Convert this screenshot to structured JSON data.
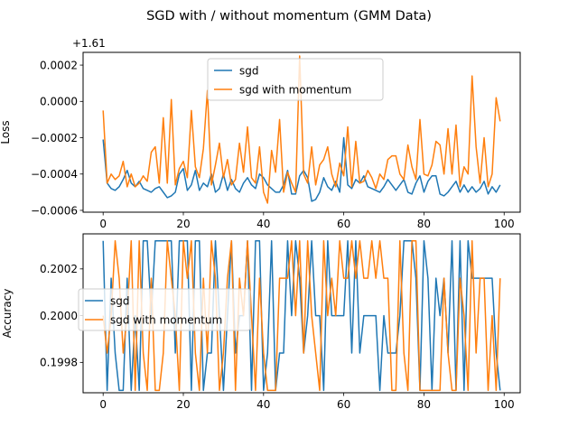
{
  "figure": {
    "suptitle": "SGD with / without momentum (GMM Data)"
  },
  "colors": {
    "sgd": "#1f77b4",
    "momentum": "#ff7f0e"
  },
  "chart_data": [
    {
      "type": "line",
      "title": "",
      "xlabel": "",
      "ylabel": "Loss",
      "y_offset_text": "+1.61",
      "xlim": [
        -5,
        104
      ],
      "ylim": [
        -0.00061,
        0.00027
      ],
      "x_ticks": [
        0,
        20,
        40,
        60,
        80,
        100
      ],
      "y_ticks": [
        -0.0006,
        -0.0004,
        -0.0002,
        0.0,
        0.0002
      ],
      "y_tick_labels": [
        "−0.0006",
        "−0.0004",
        "−0.0002",
        "0.0000",
        "0.0002"
      ],
      "legend": "upper center",
      "series": [
        {
          "name": "sgd",
          "color": "#1f77b4",
          "x": [
            0,
            1,
            2,
            3,
            4,
            5,
            6,
            7,
            8,
            9,
            10,
            11,
            12,
            13,
            14,
            15,
            16,
            17,
            18,
            19,
            20,
            21,
            22,
            23,
            24,
            25,
            26,
            27,
            28,
            29,
            30,
            31,
            32,
            33,
            34,
            35,
            36,
            37,
            38,
            39,
            40,
            41,
            42,
            43,
            44,
            45,
            46,
            47,
            48,
            49,
            50,
            51,
            52,
            53,
            54,
            55,
            56,
            57,
            58,
            59,
            60,
            61,
            62,
            63,
            64,
            65,
            66,
            67,
            68,
            69,
            70,
            71,
            72,
            73,
            74,
            75,
            76,
            77,
            78,
            79,
            80,
            81,
            82,
            83,
            84,
            85,
            86,
            87,
            88,
            89,
            90,
            91,
            92,
            93,
            94,
            95,
            96,
            97,
            98,
            99
          ],
          "values": [
            -0.00021,
            -0.00045,
            -0.00048,
            -0.00049,
            -0.00047,
            -0.00043,
            -0.00038,
            -0.00045,
            -0.00047,
            -0.00044,
            -0.00048,
            -0.00049,
            -0.0005,
            -0.00048,
            -0.00047,
            -0.0005,
            -0.00053,
            -0.00052,
            -0.0005,
            -0.0004,
            -0.00037,
            -0.00049,
            -0.00046,
            -0.00038,
            -0.00049,
            -0.00045,
            -0.00047,
            -0.0004,
            -0.0005,
            -0.00048,
            -0.0004,
            -0.00049,
            -0.00043,
            -0.00048,
            -0.0005,
            -0.00045,
            -0.00042,
            -0.00046,
            -0.00048,
            -0.0004,
            -0.00042,
            -0.00046,
            -0.00048,
            -0.0005,
            -0.0005,
            -0.00046,
            -0.00038,
            -0.00051,
            -0.00051,
            -0.00041,
            -0.00038,
            -0.00042,
            -0.00055,
            -0.00054,
            -0.0005,
            -0.00042,
            -0.00047,
            -0.00049,
            -0.00044,
            -0.0005,
            -0.0002,
            -0.00046,
            -0.00048,
            -0.00043,
            -0.00045,
            -0.00041,
            -0.00047,
            -0.00048,
            -0.00049,
            -0.0005,
            -0.00047,
            -0.00043,
            -0.00046,
            -0.00049,
            -0.00046,
            -0.00043,
            -0.0005,
            -0.00051,
            -0.00045,
            -0.00041,
            -0.0005,
            -0.00044,
            -0.00041,
            -0.00041,
            -0.00051,
            -0.00052,
            -0.0005,
            -0.00047,
            -0.00044,
            -0.0005,
            -0.00046,
            -0.0005,
            -0.00047,
            -0.0005,
            -0.00048,
            -0.00044,
            -0.00051,
            -0.00047,
            -0.0005,
            -0.00046
          ]
        },
        {
          "name": "sgd with momentum",
          "color": "#ff7f0e",
          "x": [
            0,
            1,
            2,
            3,
            4,
            5,
            6,
            7,
            8,
            9,
            10,
            11,
            12,
            13,
            14,
            15,
            16,
            17,
            18,
            19,
            20,
            21,
            22,
            23,
            24,
            25,
            26,
            27,
            28,
            29,
            30,
            31,
            32,
            33,
            34,
            35,
            36,
            37,
            38,
            39,
            40,
            41,
            42,
            43,
            44,
            45,
            46,
            47,
            48,
            49,
            50,
            51,
            52,
            53,
            54,
            55,
            56,
            57,
            58,
            59,
            60,
            61,
            62,
            63,
            64,
            65,
            66,
            67,
            68,
            69,
            70,
            71,
            72,
            73,
            74,
            75,
            76,
            77,
            78,
            79,
            80,
            81,
            82,
            83,
            84,
            85,
            86,
            87,
            88,
            89,
            90,
            91,
            92,
            93,
            94,
            95,
            96,
            97,
            98,
            99
          ],
          "values": [
            -5e-05,
            -0.00045,
            -0.0004,
            -0.00043,
            -0.00041,
            -0.00033,
            -0.00047,
            -0.0004,
            -0.00047,
            -0.00045,
            -0.00041,
            -0.00044,
            -0.00028,
            -0.00025,
            -0.00045,
            -9e-05,
            -0.00045,
            1e-05,
            -0.00046,
            -0.00037,
            -0.00033,
            -0.00042,
            -5e-05,
            -0.00036,
            -0.00042,
            -0.00026,
            6e-05,
            -0.00046,
            -0.00035,
            -0.00023,
            -0.00042,
            -0.00032,
            -0.00046,
            -0.00043,
            -0.00023,
            -0.00039,
            -0.00014,
            -0.00042,
            -0.00045,
            -0.00025,
            -0.0005,
            -0.00056,
            -0.00027,
            -0.00039,
            -0.0001,
            -0.0005,
            -0.00039,
            -0.00045,
            -0.0005,
            0.00025,
            -0.0004,
            -0.00045,
            -0.00025,
            -0.00046,
            -0.00035,
            -0.00032,
            -0.00025,
            -0.0004,
            -0.00047,
            -0.00034,
            -0.00041,
            -0.00014,
            -0.00047,
            -0.00022,
            -0.00045,
            -0.00044,
            -0.00038,
            -0.00042,
            -0.00048,
            -0.0004,
            -0.00043,
            -0.00032,
            -0.0003,
            -0.0003,
            -0.0004,
            -0.00043,
            -0.00024,
            -0.00036,
            -0.00043,
            -0.0001,
            -0.0004,
            -0.00041,
            -0.00035,
            -0.00022,
            -0.00024,
            -0.0004,
            -0.00015,
            -0.0004,
            -0.00013,
            -0.00047,
            -0.00036,
            -0.0004,
            0.00014,
            -0.00025,
            -0.00045,
            -0.0002,
            -0.00047,
            -0.0004,
            2e-05,
            -0.00011
          ]
        }
      ]
    },
    {
      "type": "line",
      "title": "",
      "xlabel": "",
      "ylabel": "Accuracy",
      "xlim": [
        -5,
        104
      ],
      "ylim": [
        0.19967,
        0.20035
      ],
      "x_ticks": [
        0,
        20,
        40,
        60,
        80,
        100
      ],
      "y_ticks": [
        0.1998,
        0.2,
        0.2002
      ],
      "y_tick_labels": [
        "0.1998",
        "0.2000",
        "0.2002"
      ],
      "legend": "center left",
      "series": [
        {
          "name": "sgd",
          "color": "#1f77b4",
          "x": [
            0,
            1,
            2,
            3,
            4,
            5,
            6,
            7,
            8,
            9,
            10,
            11,
            12,
            13,
            14,
            15,
            16,
            17,
            18,
            19,
            20,
            21,
            22,
            23,
            24,
            25,
            26,
            27,
            28,
            29,
            30,
            31,
            32,
            33,
            34,
            35,
            36,
            37,
            38,
            39,
            40,
            41,
            42,
            43,
            44,
            45,
            46,
            47,
            48,
            49,
            50,
            51,
            52,
            53,
            54,
            55,
            56,
            57,
            58,
            59,
            60,
            61,
            62,
            63,
            64,
            65,
            66,
            67,
            68,
            69,
            70,
            71,
            72,
            73,
            74,
            75,
            76,
            77,
            78,
            79,
            80,
            81,
            82,
            83,
            84,
            85,
            86,
            87,
            88,
            89,
            90,
            91,
            92,
            93,
            94,
            95,
            96,
            97,
            98,
            99
          ],
          "values": [
            0.20032,
            0.19968,
            0.20016,
            0.19984,
            0.19968,
            0.19968,
            0.20016,
            0.19968,
            0.2,
            0.19968,
            0.20032,
            0.20032,
            0.2,
            0.20032,
            0.20032,
            0.20032,
            0.20032,
            0.20032,
            0.19984,
            0.20032,
            0.20032,
            0.20032,
            0.19968,
            0.20032,
            0.20032,
            0.19968,
            0.19984,
            0.19984,
            0.20032,
            0.2,
            0.19968,
            0.2,
            0.20032,
            0.19984,
            0.2,
            0.2,
            0.20032,
            0.19968,
            0.20032,
            0.20032,
            0.19968,
            0.19984,
            0.20032,
            0.19968,
            0.19984,
            0.19984,
            0.20032,
            0.2,
            0.20032,
            0.20016,
            0.19984,
            0.2,
            0.20032,
            0.2,
            0.2,
            0.19968,
            0.20032,
            0.2,
            0.2,
            0.2,
            0.2,
            0.20032,
            0.19984,
            0.20032,
            0.19984,
            0.2,
            0.2,
            0.2,
            0.2,
            0.19968,
            0.2,
            0.19984,
            0.19984,
            0.19984,
            0.2,
            0.20032,
            0.20032,
            0.20032,
            0.20016,
            0.19968,
            0.20032,
            0.20016,
            0.19968,
            0.20016,
            0.2,
            0.20016,
            0.19984,
            0.20032,
            0.19968,
            0.20032,
            0.19968,
            0.20032,
            0.20016,
            0.20016,
            0.20016,
            0.20016,
            0.20016,
            0.20016,
            0.19984,
            0.19968
          ]
        },
        {
          "name": "sgd with momentum",
          "color": "#ff7f0e",
          "x": [
            0,
            1,
            2,
            3,
            4,
            5,
            6,
            7,
            8,
            9,
            10,
            11,
            12,
            13,
            14,
            15,
            16,
            17,
            18,
            19,
            20,
            21,
            22,
            23,
            24,
            25,
            26,
            27,
            28,
            29,
            30,
            31,
            32,
            33,
            34,
            35,
            36,
            37,
            38,
            39,
            40,
            41,
            42,
            43,
            44,
            45,
            46,
            47,
            48,
            49,
            50,
            51,
            52,
            53,
            54,
            55,
            56,
            57,
            58,
            59,
            60,
            61,
            62,
            63,
            64,
            65,
            66,
            67,
            68,
            69,
            70,
            71,
            72,
            73,
            74,
            75,
            76,
            77,
            78,
            79,
            80,
            81,
            82,
            83,
            84,
            85,
            86,
            87,
            88,
            89,
            90,
            91,
            92,
            93,
            94,
            95,
            96,
            97,
            98,
            99
          ],
          "values": [
            0.2,
            0.19984,
            0.2,
            0.20032,
            0.20016,
            0.19984,
            0.2,
            0.20032,
            0.19968,
            0.20032,
            0.19984,
            0.19968,
            0.20016,
            0.19968,
            0.19968,
            0.19984,
            0.20032,
            0.20016,
            0.2,
            0.19968,
            0.20032,
            0.20016,
            0.20032,
            0.19984,
            0.19968,
            0.20016,
            0.19984,
            0.20032,
            0.20016,
            0.19968,
            0.19984,
            0.20016,
            0.20032,
            0.19968,
            0.20016,
            0.2,
            0.20032,
            0.2,
            0.19968,
            0.20016,
            0.19984,
            0.19968,
            0.19968,
            0.19968,
            0.20016,
            0.20016,
            0.20016,
            0.20032,
            0.2,
            0.20032,
            0.19984,
            0.20032,
            0.2,
            0.19984,
            0.19968,
            0.20032,
            0.2,
            0.20016,
            0.2,
            0.20032,
            0.20016,
            0.20016,
            0.20032,
            0.20016,
            0.20032,
            0.20016,
            0.20016,
            0.20032,
            0.20016,
            0.20032,
            0.20016,
            0.20016,
            0.19968,
            0.19968,
            0.20032,
            0.19984,
            0.19968,
            0.20032,
            0.20032,
            0.19968,
            0.19968,
            0.19968,
            0.19968,
            0.19968,
            0.19968,
            0.20016,
            0.19984,
            0.19968,
            0.19968,
            0.20016,
            0.2,
            0.19968,
            0.20032,
            0.19984,
            0.20016,
            0.20016,
            0.19968,
            0.2,
            0.19968,
            0.20016
          ]
        }
      ]
    }
  ]
}
